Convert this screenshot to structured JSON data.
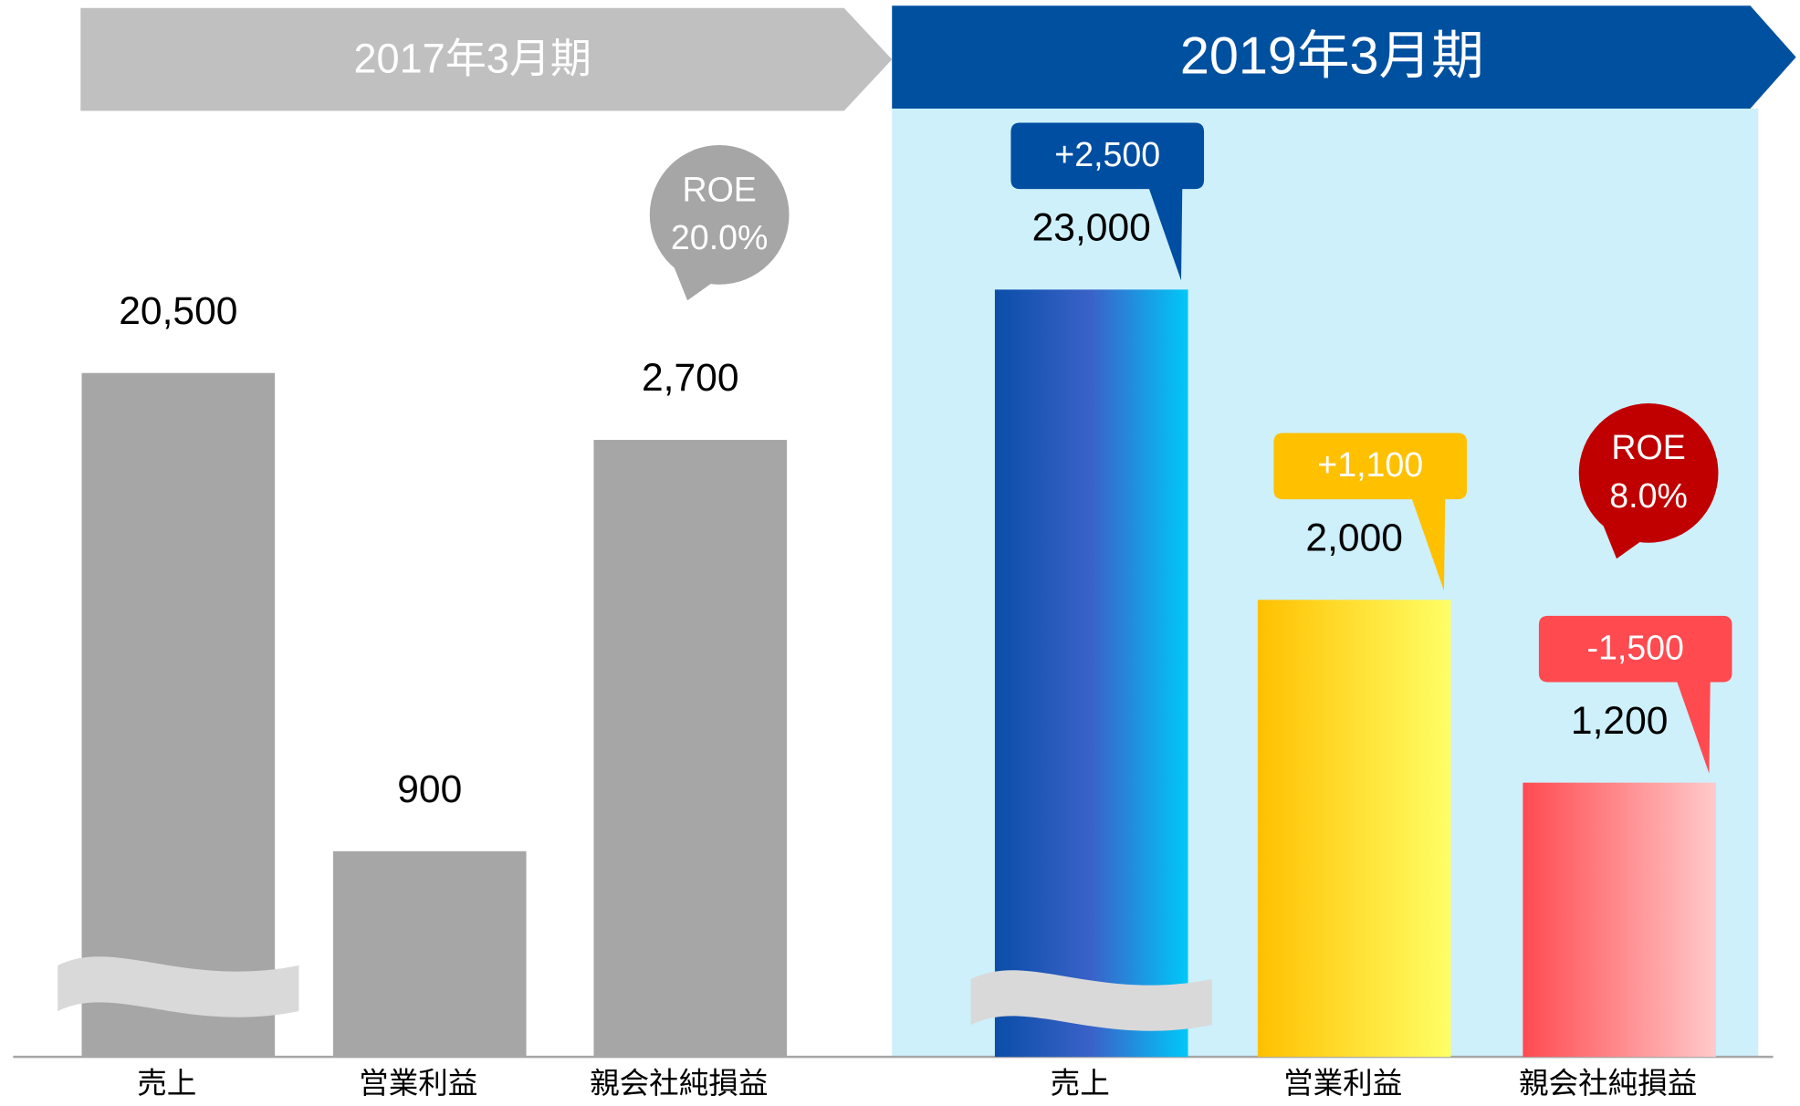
{
  "chart_data": [
    {
      "type": "bar",
      "title": "2017年3月期",
      "header_color": "#c0c0c0",
      "categories": [
        "売上",
        "営業利益",
        "親会社純損益"
      ],
      "values": [
        20500,
        900,
        2700
      ],
      "value_labels": [
        "20,500",
        "900",
        "2,700"
      ],
      "axes": [
        "y2",
        "y",
        "y"
      ],
      "ylim": [
        0,
        3000
      ],
      "y2lim": [
        0,
        20550
      ],
      "colors": [
        [
          "#a6a6a6",
          "#a6a6a6"
        ],
        [
          "#a6a6a6",
          "#a6a6a6"
        ],
        [
          "#a6a6a6",
          "#a6a6a6"
        ]
      ],
      "roe": {
        "name": "ROE",
        "value": 20.0,
        "label": "20.0%",
        "color": "#a6a6a6"
      }
    },
    {
      "type": "bar",
      "title": "2019年3月期",
      "header_color": "#0050a0",
      "background": "#cdf0fb",
      "categories": [
        "売上",
        "営業利益",
        "親会社純損益"
      ],
      "values": [
        23000,
        2000,
        1200
      ],
      "value_labels": [
        "23,000",
        "2,000",
        "1,200"
      ],
      "axes": [
        "y2",
        "y",
        "y"
      ],
      "ylim": [
        0,
        3000
      ],
      "y2lim": [
        0,
        20550
      ],
      "colors": [
        [
          "#0a4ea8",
          "#3a62c8",
          "#00c8f8"
        ],
        [
          "#ffc000",
          "#ffff66"
        ],
        [
          "#ff4a50",
          "#ffcaca"
        ]
      ],
      "changes": [
        2500,
        1100,
        -1500
      ],
      "change_labels": [
        "+2,500",
        "+1,100",
        "-1,500"
      ],
      "change_colors": [
        "#004ea2",
        "#ffc000",
        "#ff4a50"
      ],
      "roe": {
        "name": "ROE",
        "value": 8.0,
        "label": "8.0%",
        "color": "#c00000"
      }
    }
  ]
}
